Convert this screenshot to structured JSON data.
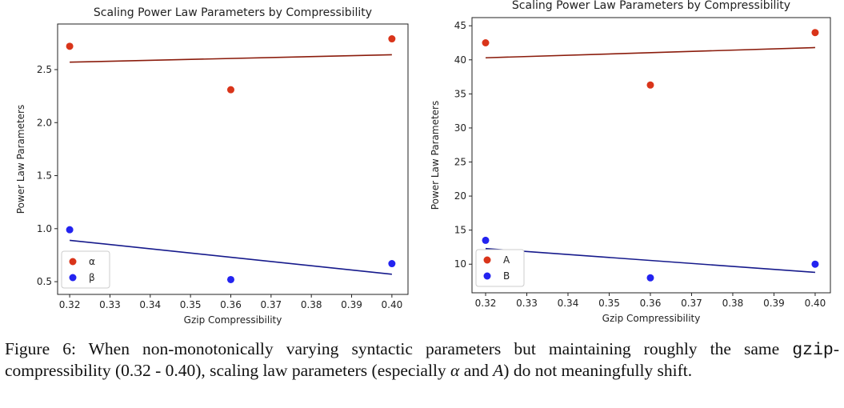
{
  "chart_data": [
    {
      "type": "scatter",
      "title": "Scaling Power Law Parameters by Compressibility",
      "x_label": "Gzip Compressibility",
      "y_label": "Power Law Parameters",
      "xlim": [
        0.317,
        0.404
      ],
      "ylim": [
        0.38,
        2.93
      ],
      "xticks": [
        0.32,
        0.33,
        0.34,
        0.35,
        0.36,
        0.37,
        0.38,
        0.39,
        {
          "value": 0.4,
          "label": "0.40"
        }
      ],
      "yticks": [
        0.5,
        {
          "value": 1,
          "label": "1.0"
        },
        1.5,
        {
          "value": 2,
          "label": "2.0"
        },
        2.5
      ],
      "legend": "lower left",
      "series": [
        {
          "name": "α",
          "color": "#d9341a",
          "x": [
            0.32,
            0.36,
            0.4
          ],
          "values": [
            2.72,
            2.31,
            2.79
          ],
          "fit": {
            "color": "#8b1c0c",
            "x": [
              0.32,
              0.4
            ],
            "values": [
              2.57,
              2.64
            ]
          }
        },
        {
          "name": "β",
          "color": "#2323f0",
          "x": [
            0.32,
            0.36,
            0.4
          ],
          "values": [
            0.99,
            0.52,
            0.67
          ],
          "fit": {
            "color": "#161a8c",
            "x": [
              0.32,
              0.4
            ],
            "values": [
              0.89,
              0.57
            ]
          }
        }
      ]
    },
    {
      "type": "scatter",
      "title": "Scaling Power Law Parameters by Compressibility",
      "x_label": "Gzip Compressibility",
      "y_label": "Power Law Parameters",
      "xlim": [
        0.3167,
        0.4037
      ],
      "ylim": [
        5.8,
        46.2
      ],
      "xticks": [
        0.32,
        0.33,
        0.34,
        0.35,
        0.36,
        0.37,
        0.38,
        0.39,
        {
          "value": 0.4,
          "label": "0.40"
        }
      ],
      "yticks": [
        10,
        15,
        20,
        25,
        30,
        35,
        40,
        45
      ],
      "legend": "lower left",
      "series": [
        {
          "name": "A",
          "color": "#d9341a",
          "x": [
            0.32,
            0.36,
            0.4
          ],
          "values": [
            42.5,
            36.3,
            44.0
          ],
          "fit": {
            "color": "#8b1c0c",
            "x": [
              0.32,
              0.4
            ],
            "values": [
              40.3,
              41.8
            ]
          }
        },
        {
          "name": "B",
          "color": "#2323f0",
          "x": [
            0.32,
            0.36,
            0.4
          ],
          "values": [
            13.5,
            8.0,
            10.0
          ],
          "fit": {
            "color": "#161a8c",
            "x": [
              0.32,
              0.4
            ],
            "values": [
              12.3,
              8.8
            ]
          }
        }
      ]
    }
  ],
  "caption": [
    "Figure 6: When non-monotonically varying syntactic parameters but maintaining roughly the same ",
    "gzip",
    "-compressibility (0.32 - 0.40), scaling law parameters (especially ",
    "α",
    " and ",
    "A",
    ") do not meaningfully shift."
  ]
}
